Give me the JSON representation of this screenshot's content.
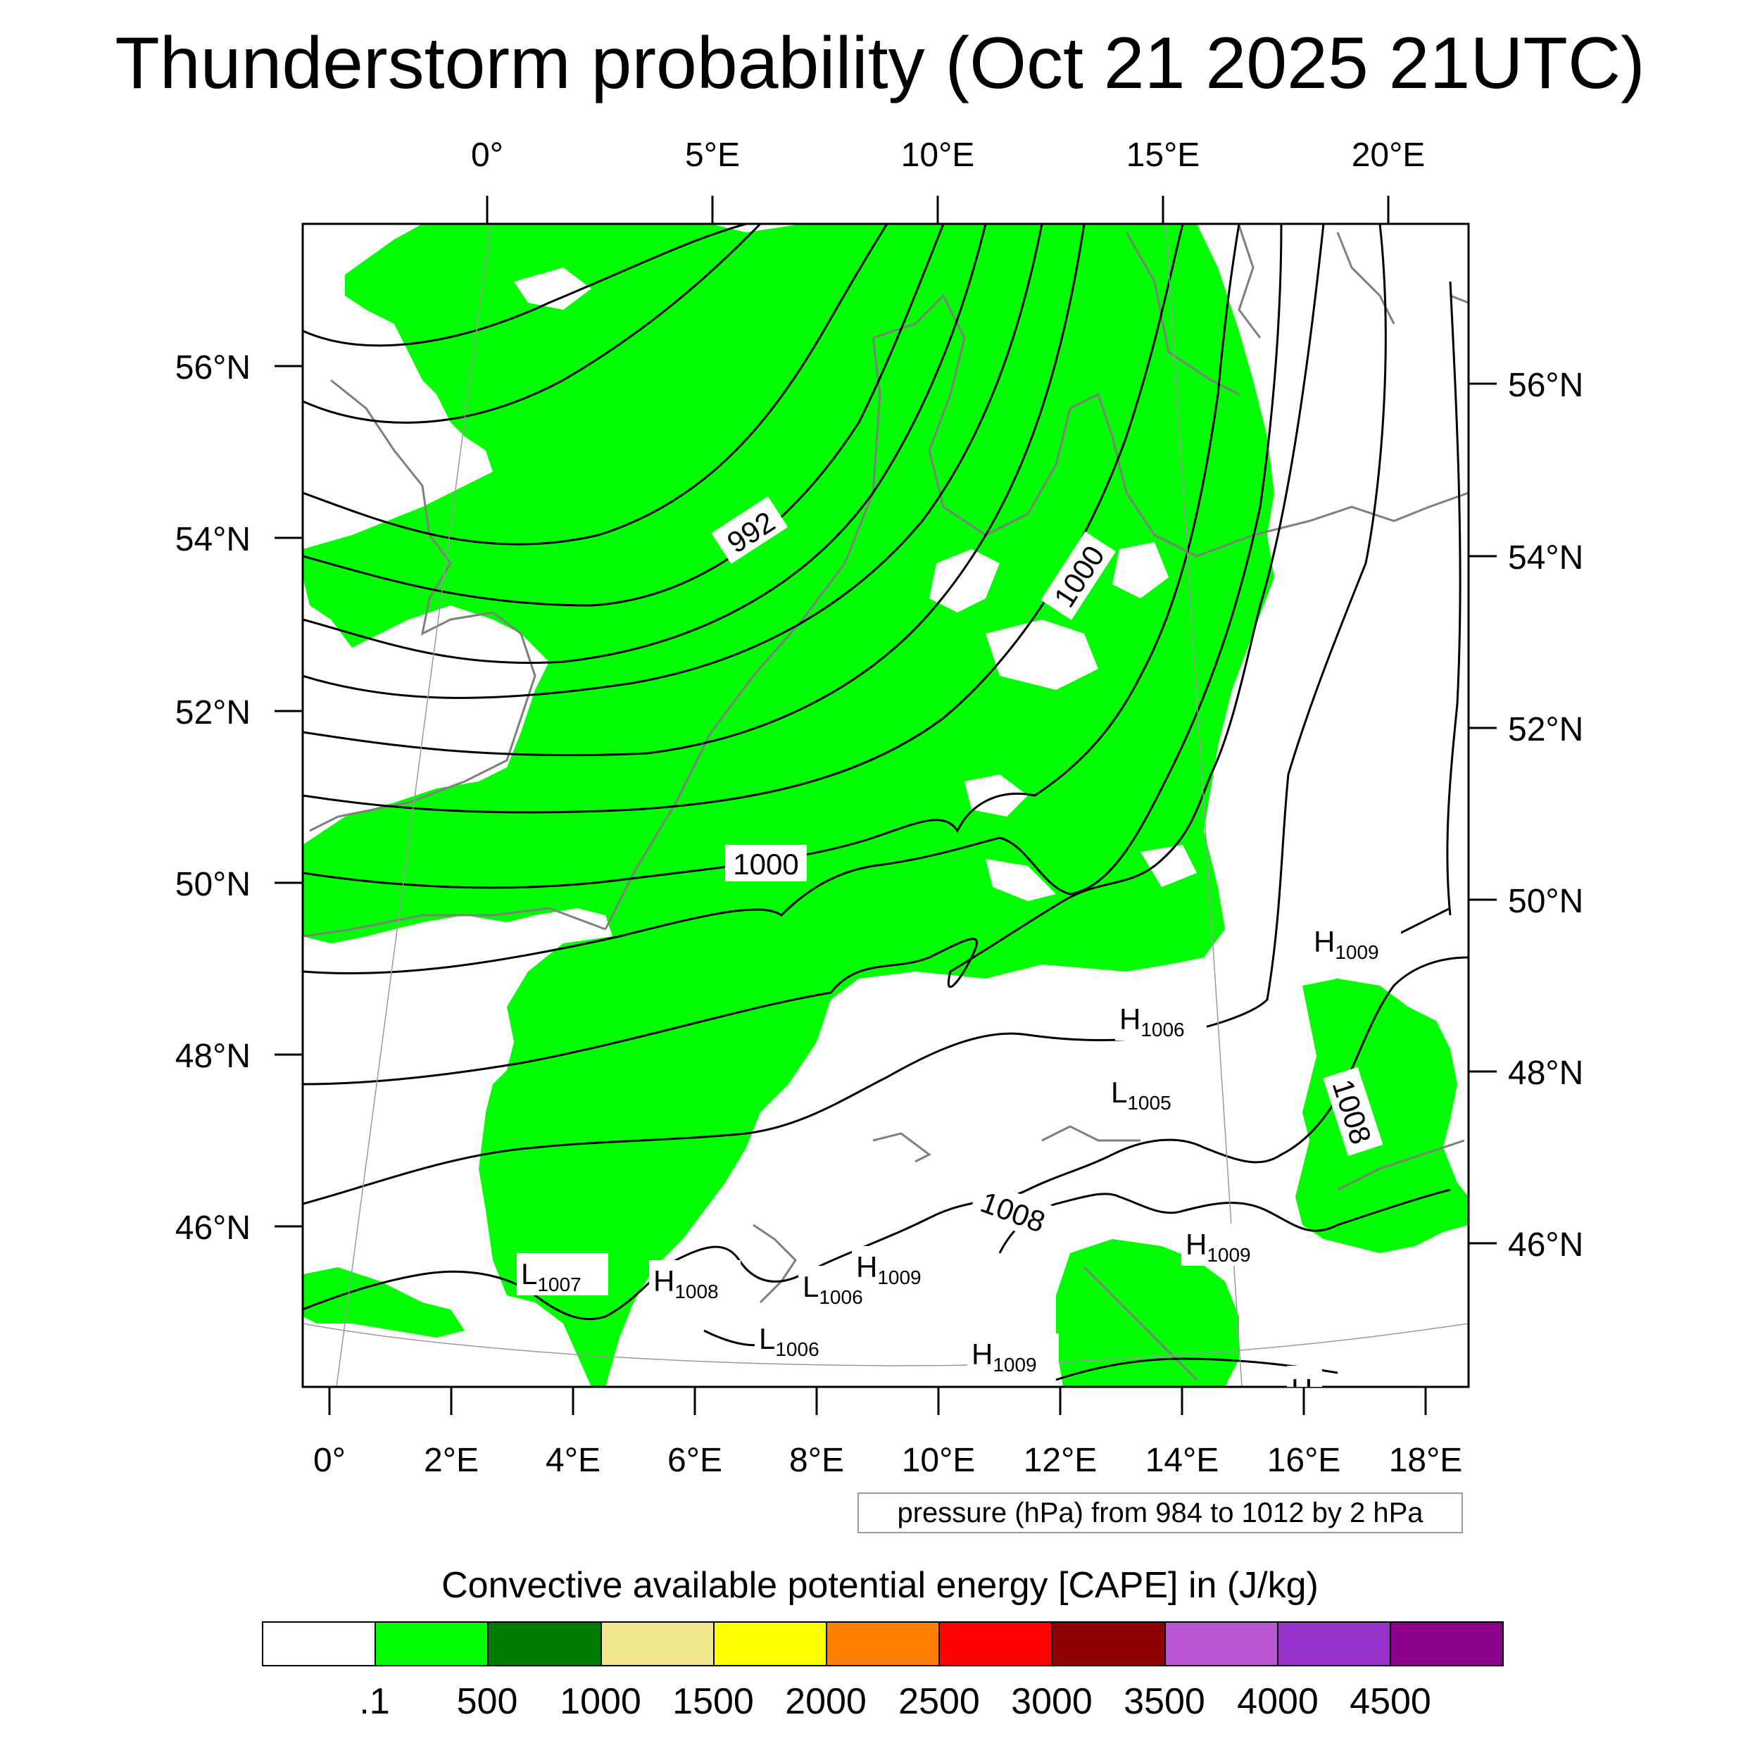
{
  "title": "Thunderstorm probability (Oct 21 2025 21UTC)",
  "map": {
    "top_longitudes": [
      "0°",
      "5°E",
      "10°E",
      "15°E",
      "20°E"
    ],
    "bottom_longitudes": [
      "0°",
      "2°E",
      "4°E",
      "6°E",
      "8°E",
      "10°E",
      "12°E",
      "14°E",
      "16°E",
      "18°E"
    ],
    "left_latitudes": [
      "56°N",
      "54°N",
      "52°N",
      "50°N",
      "48°N",
      "46°N"
    ],
    "right_latitudes": [
      "56°N",
      "54°N",
      "52°N",
      "50°N",
      "48°N",
      "46°N"
    ],
    "contour_labels": [
      "992",
      "1000",
      "1000",
      "1008",
      "1008"
    ],
    "pressure_centers": [
      {
        "letter": "H",
        "value": "1009"
      },
      {
        "letter": "H",
        "value": "1006"
      },
      {
        "letter": "L",
        "value": "1005"
      },
      {
        "letter": "H",
        "value": "1009"
      },
      {
        "letter": "L",
        "value": "1007"
      },
      {
        "letter": "H",
        "value": "1008"
      },
      {
        "letter": "L",
        "value": "1006"
      },
      {
        "letter": "H",
        "value": "1009"
      },
      {
        "letter": "L",
        "value": "1006"
      },
      {
        "letter": "H",
        "value": "1009"
      },
      {
        "letter": "H",
        "value": ""
      }
    ],
    "fill_color": "#00ff00",
    "contour_color": "#000000",
    "coastline_color": "#7f7f7f"
  },
  "pressure_note": "pressure (hPa) from 984 to 1012 by 2 hPa",
  "colorbar": {
    "title": "Convective available potential energy [CAPE] in (J/kg)",
    "colors": [
      "#ffffff",
      "#00ff00",
      "#007a00",
      "#f0e68c",
      "#ffff00",
      "#ff8000",
      "#ff0000",
      "#8b0000",
      "#ba55d3",
      "#9932cc",
      "#8b008b"
    ],
    "labels": [
      ".1",
      "500",
      "1000",
      "1500",
      "2000",
      "2500",
      "3000",
      "3500",
      "4000",
      "4500"
    ]
  }
}
